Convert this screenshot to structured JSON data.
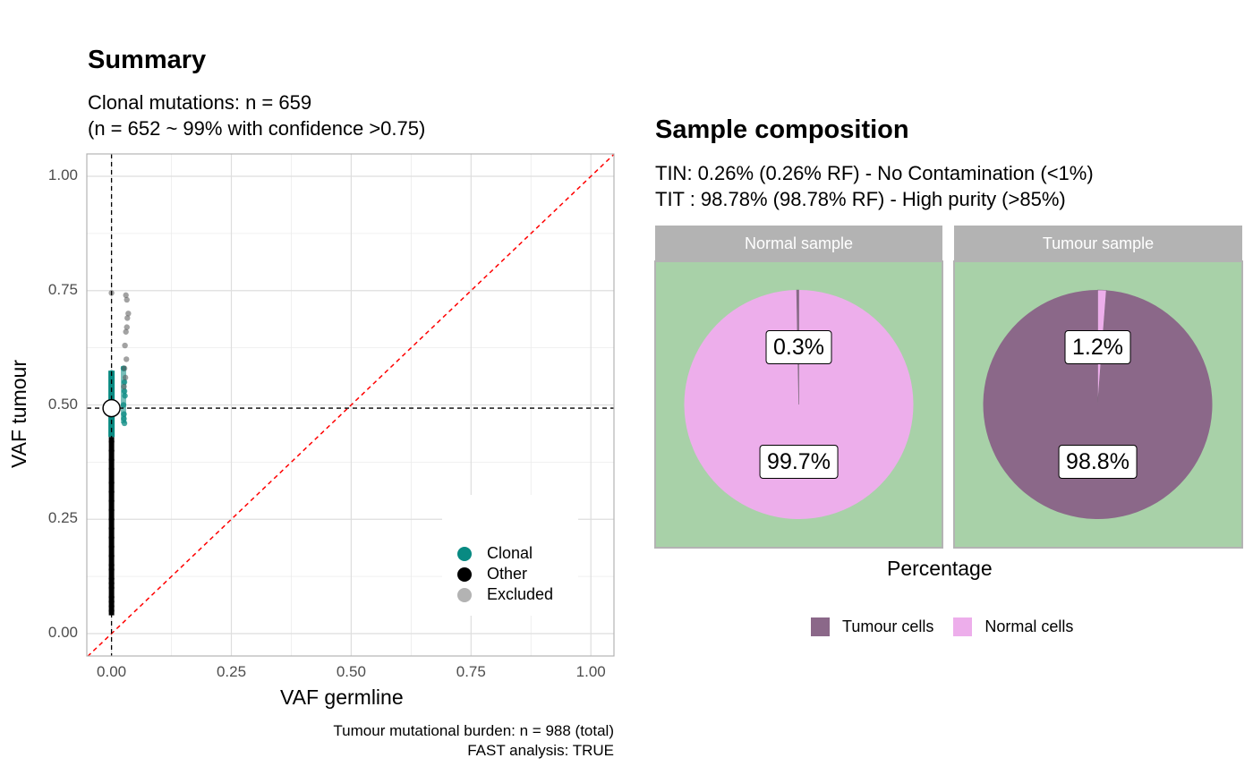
{
  "left": {
    "title": "Summary",
    "subtitle_line1": "Clonal mutations: n = 659",
    "subtitle_line2": "(n = 652 ~ 99% with confidence >0.75)",
    "caption_line1": "Tumour mutational burden: n = 988 (total)",
    "caption_line2": "FAST analysis: TRUE"
  },
  "right": {
    "title": "Sample composition",
    "subtitle_line1": "TIN: 0.26% (0.26% RF) - No Contamination (<1%)",
    "subtitle_line2": "TIT : 98.78% (98.78% RF) - High purity (>85%)"
  },
  "colors": {
    "clonal": "#088a82",
    "other": "#000000",
    "excluded": "#b3b3b3",
    "tumour": "#8b6889",
    "normal": "#edaeeb",
    "panel_bg": "#a8d1a8",
    "strip_bg": "#b3b3b3",
    "identity_line": "#ff0000"
  },
  "chart_data": [
    {
      "type": "scatter",
      "title": "Summary",
      "xlabel": "VAF germline",
      "ylabel": "VAF tumour",
      "xlim": [
        0,
        1
      ],
      "ylim": [
        0,
        1
      ],
      "x_ticks": [
        "0.00",
        "0.25",
        "0.50",
        "0.75",
        "1.00"
      ],
      "y_ticks": [
        "0.00",
        "0.25",
        "0.50",
        "0.75",
        "1.00"
      ],
      "grid": true,
      "legend_position": "bottom-right",
      "reference_lines": {
        "vline_x": 0.0,
        "hline_y": 0.493,
        "diagonal": "y = x"
      },
      "estimate_point": {
        "x": 0.0,
        "y": 0.493
      },
      "series": [
        {
          "name": "Clonal",
          "color": "#088a82",
          "x_range": [
            0.0,
            0.03
          ],
          "y_range": [
            0.43,
            0.575
          ],
          "x": [
            0.0,
            0.0,
            0.0,
            0.0,
            0.0,
            0.0,
            0.0,
            0.0,
            0.025,
            0.027,
            0.027,
            0.028,
            0.025,
            0.026,
            0.026,
            0.027
          ],
          "y": [
            0.57,
            0.56,
            0.54,
            0.52,
            0.5,
            0.48,
            0.46,
            0.44,
            0.58,
            0.55,
            0.53,
            0.52,
            0.5,
            0.48,
            0.47,
            0.46
          ]
        },
        {
          "name": "Other",
          "color": "#000000",
          "x_range": [
            0.0,
            0.005
          ],
          "y_range": [
            0.04,
            0.43
          ],
          "x": [
            0,
            0,
            0,
            0,
            0,
            0,
            0,
            0,
            0,
            0,
            0,
            0,
            0,
            0,
            0,
            0,
            0,
            0,
            0,
            0,
            0,
            0
          ],
          "y": [
            0.42,
            0.4,
            0.38,
            0.36,
            0.33,
            0.31,
            0.29,
            0.27,
            0.25,
            0.23,
            0.21,
            0.19,
            0.17,
            0.15,
            0.14,
            0.12,
            0.11,
            0.1,
            0.08,
            0.07,
            0.06,
            0.05
          ]
        },
        {
          "name": "Excluded",
          "color": "#b3b3b3",
          "x_range": [
            0.0,
            0.04
          ],
          "y_range": [
            0.44,
            0.75
          ],
          "x": [
            0.0,
            0.03,
            0.032,
            0.035,
            0.033,
            0.032,
            0.03,
            0.028,
            0.031,
            0.027,
            0.029,
            0.026
          ],
          "y": [
            0.745,
            0.74,
            0.73,
            0.7,
            0.69,
            0.67,
            0.66,
            0.63,
            0.6,
            0.58,
            0.56,
            0.54
          ]
        }
      ]
    },
    {
      "type": "pie",
      "title": "Sample composition",
      "xlabel": "Percentage",
      "legend_position": "bottom",
      "legend": [
        "Tumour cells",
        "Normal cells"
      ],
      "facets": [
        {
          "name": "Normal sample",
          "slices": [
            {
              "name": "Tumour cells",
              "value": 0.3,
              "label": "0.3%"
            },
            {
              "name": "Normal cells",
              "value": 99.7,
              "label": "99.7%"
            }
          ]
        },
        {
          "name": "Tumour sample",
          "slices": [
            {
              "name": "Tumour cells",
              "value": 98.8,
              "label": "98.8%"
            },
            {
              "name": "Normal cells",
              "value": 1.2,
              "label": "1.2%"
            }
          ]
        }
      ]
    }
  ]
}
